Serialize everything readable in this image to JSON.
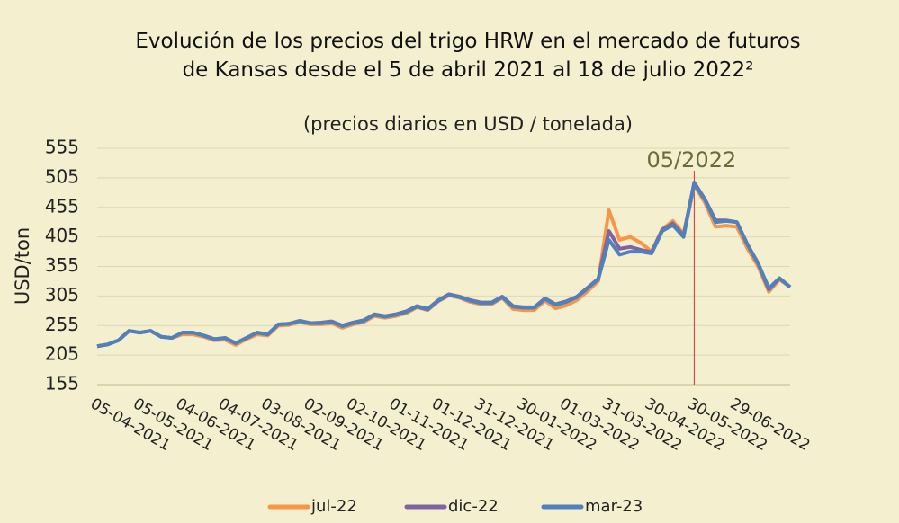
{
  "chart_data": {
    "type": "line",
    "title": "Evolución de los precios del trigo HRW en el mercado de futuros de Kansas desde el 5 de abril 2021 al 18 de julio 2022²",
    "subtitle": "(precios diarios en USD / tonelada)",
    "y_label": "USD/ton",
    "annotation": "05/2022",
    "categories": [
      "05-04-2021",
      null,
      null,
      null,
      "05-05-2021",
      null,
      null,
      null,
      "04-06-2021",
      null,
      null,
      null,
      "04-07-2021",
      null,
      null,
      null,
      "03-08-2021",
      null,
      null,
      null,
      "02-09-2021",
      null,
      null,
      null,
      "02-10-2021",
      null,
      null,
      null,
      "01-11-2021",
      null,
      null,
      null,
      "01-12-2021",
      null,
      null,
      null,
      "31-12-2021",
      null,
      null,
      null,
      "30-01-2022",
      null,
      null,
      null,
      "01-03-2022",
      null,
      null,
      null,
      "31-03-2022",
      null,
      null,
      null,
      "30-04-2022",
      null,
      null,
      null,
      "30-05-2022",
      null,
      null,
      null,
      "29-06-2022",
      null,
      null,
      null,
      null,
      null
    ],
    "series": [
      {
        "name": "jul-22",
        "color": "#f79646",
        "values": [
          220,
          223,
          230,
          246,
          243,
          246,
          236,
          234,
          240,
          240,
          236,
          230,
          231,
          222,
          232,
          240,
          238,
          255,
          256,
          261,
          257,
          257,
          259,
          251,
          257,
          261,
          271,
          268,
          271,
          276,
          286,
          281,
          296,
          306,
          302,
          295,
          291,
          291,
          302,
          283,
          281,
          281,
          297,
          284,
          289,
          298,
          313,
          330,
          450,
          400,
          405,
          395,
          380,
          418,
          432,
          410,
          493,
          463,
          422,
          424,
          422,
          385,
          355,
          312,
          333,
          320
        ]
      },
      {
        "name": "dic-22",
        "color": "#8064a2",
        "values": [
          220,
          223,
          230,
          246,
          243,
          246,
          236,
          234,
          243,
          243,
          238,
          232,
          234,
          225,
          234,
          243,
          240,
          257,
          258,
          263,
          259,
          260,
          262,
          255,
          260,
          264,
          274,
          271,
          274,
          279,
          288,
          283,
          298,
          308,
          304,
          298,
          294,
          294,
          304,
          288,
          286,
          286,
          301,
          291,
          296,
          304,
          319,
          334,
          415,
          385,
          388,
          383,
          379,
          417,
          428,
          407,
          497,
          469,
          433,
          433,
          430,
          392,
          360,
          316,
          335,
          320
        ]
      },
      {
        "name": "mar-23",
        "color": "#4f81bd",
        "values": [
          220,
          223,
          230,
          246,
          243,
          246,
          236,
          234,
          243,
          243,
          238,
          232,
          234,
          225,
          234,
          243,
          240,
          257,
          258,
          263,
          259,
          259,
          261,
          254,
          259,
          263,
          273,
          270,
          273,
          278,
          287,
          282,
          297,
          307,
          303,
          297,
          293,
          293,
          303,
          287,
          285,
          285,
          300,
          290,
          295,
          303,
          318,
          333,
          400,
          375,
          380,
          380,
          377,
          415,
          425,
          405,
          495,
          468,
          430,
          432,
          430,
          392,
          360,
          318,
          335,
          320
        ]
      }
    ],
    "ylim": [
      155,
      555
    ],
    "yticks": [
      155,
      205,
      255,
      305,
      355,
      405,
      455,
      505,
      555
    ],
    "grid": true,
    "legend": "bottom"
  }
}
